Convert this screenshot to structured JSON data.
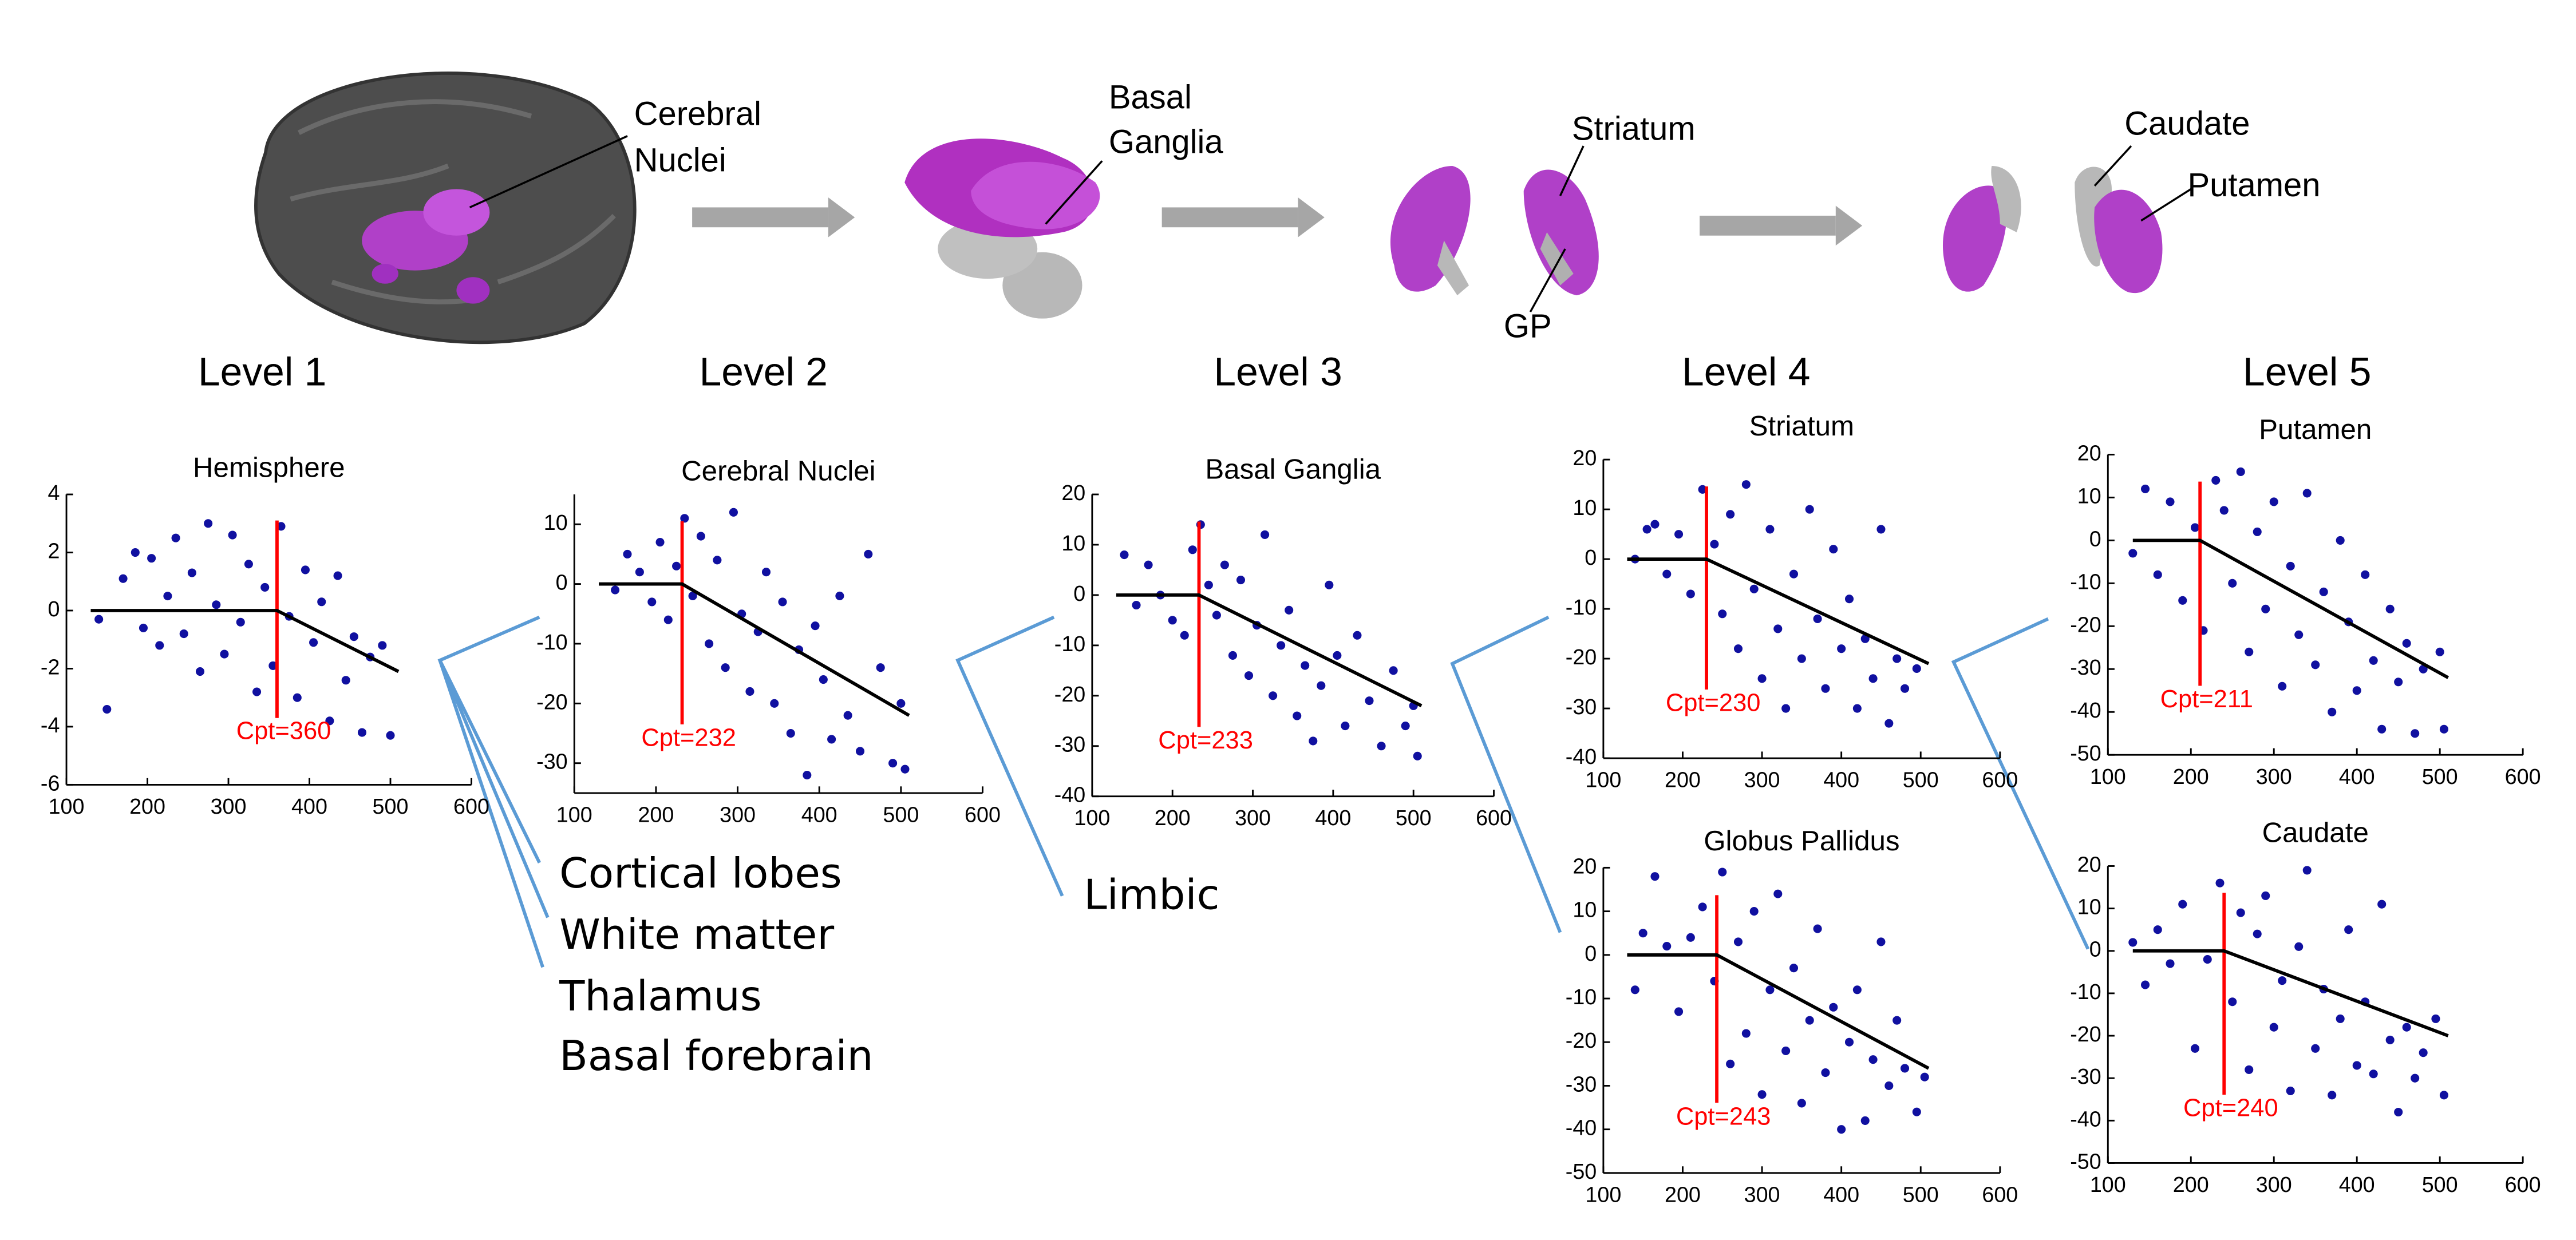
{
  "levels": [
    "Level 1",
    "Level 2",
    "Level 3",
    "Level 4",
    "Level 5"
  ],
  "anatomy_labels": {
    "cerebral_nuclei": [
      "Cerebral",
      "Nuclei"
    ],
    "basal_ganglia": [
      "Basal",
      "Ganglia"
    ],
    "striatum": "Striatum",
    "gp": "GP",
    "caudate": "Caudate",
    "putamen": "Putamen"
  },
  "region_lists": {
    "level1": [
      "Cortical lobes",
      "White matter",
      "Thalamus",
      "Basal forebrain"
    ],
    "level2": [
      "Limbic"
    ]
  },
  "chart_data": [
    {
      "type": "scatter",
      "title": "Hemisphere",
      "color": "#1010a0",
      "x": [
        140,
        150,
        170,
        185,
        195,
        205,
        215,
        225,
        235,
        245,
        255,
        265,
        275,
        285,
        295,
        305,
        315,
        325,
        335,
        345,
        355,
        365,
        375,
        385,
        395,
        405,
        415,
        425,
        435,
        445,
        455,
        465,
        475,
        490,
        500
      ],
      "values": [
        -0.3,
        -3.4,
        1.1,
        2.0,
        -0.6,
        1.8,
        -1.2,
        0.5,
        2.5,
        -0.8,
        1.3,
        -2.1,
        3.0,
        0.2,
        -1.5,
        2.6,
        -0.4,
        1.6,
        -2.8,
        0.8,
        -1.9,
        2.9,
        -0.2,
        -3.0,
        1.4,
        -1.1,
        0.3,
        -3.8,
        1.2,
        -2.4,
        -0.9,
        -4.2,
        -1.6,
        -1.2,
        -4.3
      ],
      "xlim": [
        100,
        600
      ],
      "ylim": [
        -6,
        4
      ],
      "xticks": [
        100,
        200,
        300,
        400,
        500,
        600
      ],
      "yticks": [
        -6,
        -4,
        -2,
        0,
        2,
        4
      ],
      "fit": {
        "x": [
          130,
          360,
          510
        ],
        "y": [
          0,
          0,
          -2.1
        ],
        "color": "#000000"
      },
      "changepoint": 360,
      "changepoint_label": "Cpt=360",
      "changepoint_color": "#ff0000"
    },
    {
      "type": "scatter",
      "title": "Cerebral Nuclei",
      "color": "#1010a0",
      "x": [
        150,
        165,
        180,
        195,
        205,
        215,
        225,
        235,
        245,
        255,
        265,
        275,
        285,
        295,
        305,
        315,
        325,
        335,
        345,
        355,
        365,
        375,
        385,
        395,
        405,
        415,
        425,
        435,
        450,
        460,
        475,
        490,
        500,
        505
      ],
      "values": [
        -1,
        5,
        2,
        -3,
        7,
        -6,
        3,
        11,
        -2,
        8,
        -10,
        4,
        -14,
        12,
        -5,
        -18,
        -8,
        2,
        -20,
        -3,
        -25,
        -11,
        -32,
        -7,
        -16,
        -26,
        -2,
        -22,
        -28,
        5,
        -14,
        -30,
        -20,
        -31
      ],
      "xlim": [
        100,
        600
      ],
      "ylim": [
        -35,
        15
      ],
      "xticks": [
        100,
        200,
        300,
        400,
        500,
        600
      ],
      "yticks": [
        -30,
        -20,
        -10,
        0,
        10
      ],
      "fit": {
        "x": [
          130,
          232,
          510
        ],
        "y": [
          0,
          0,
          -22
        ],
        "color": "#000000"
      },
      "changepoint": 232,
      "changepoint_label": "Cpt=232",
      "changepoint_color": "#ff0000"
    },
    {
      "type": "scatter",
      "title": "Basal Ganglia",
      "color": "#1010a0",
      "x": [
        140,
        155,
        170,
        185,
        200,
        215,
        225,
        235,
        245,
        255,
        265,
        275,
        285,
        295,
        305,
        315,
        325,
        335,
        345,
        355,
        365,
        375,
        385,
        395,
        405,
        415,
        430,
        445,
        460,
        475,
        490,
        500,
        505
      ],
      "values": [
        8,
        -2,
        6,
        0,
        -5,
        -8,
        9,
        14,
        2,
        -4,
        6,
        -12,
        3,
        -16,
        -6,
        12,
        -20,
        -10,
        -3,
        -24,
        -14,
        -29,
        -18,
        2,
        -12,
        -26,
        -8,
        -21,
        -30,
        -15,
        -26,
        -22,
        -32
      ],
      "xlim": [
        100,
        600
      ],
      "ylim": [
        -40,
        20
      ],
      "xticks": [
        100,
        200,
        300,
        400,
        500,
        600
      ],
      "yticks": [
        -40,
        -30,
        -20,
        -10,
        0,
        10,
        20
      ],
      "fit": {
        "x": [
          130,
          233,
          510
        ],
        "y": [
          0,
          0,
          -22
        ],
        "color": "#000000"
      },
      "changepoint": 233,
      "changepoint_label": "Cpt=233",
      "changepoint_color": "#ff0000"
    },
    {
      "type": "scatter",
      "title": "Striatum",
      "color": "#1010a0",
      "x": [
        140,
        155,
        165,
        180,
        195,
        210,
        225,
        240,
        250,
        260,
        270,
        280,
        290,
        300,
        310,
        320,
        330,
        340,
        350,
        360,
        370,
        380,
        390,
        400,
        410,
        420,
        430,
        440,
        450,
        460,
        470,
        480,
        495
      ],
      "values": [
        0,
        6,
        7,
        -3,
        5,
        -7,
        14,
        3,
        -11,
        9,
        -18,
        15,
        -6,
        -24,
        6,
        -14,
        -30,
        -3,
        -20,
        10,
        -12,
        -26,
        2,
        -18,
        -8,
        -30,
        -16,
        -24,
        6,
        -33,
        -20,
        -26,
        -22
      ],
      "xlim": [
        100,
        600
      ],
      "ylim": [
        -40,
        20
      ],
      "xticks": [
        100,
        200,
        300,
        400,
        500,
        600
      ],
      "yticks": [
        -40,
        -30,
        -20,
        -10,
        0,
        10,
        20
      ],
      "fit": {
        "x": [
          130,
          230,
          510
        ],
        "y": [
          0,
          0,
          -21
        ],
        "color": "#000000"
      },
      "changepoint": 230,
      "changepoint_label": "Cpt=230",
      "changepoint_color": "#ff0000"
    },
    {
      "type": "scatter",
      "title": "Globus Pallidus",
      "color": "#1010a0",
      "x": [
        140,
        150,
        165,
        180,
        195,
        210,
        225,
        240,
        250,
        260,
        270,
        280,
        290,
        300,
        310,
        320,
        330,
        340,
        350,
        360,
        370,
        380,
        390,
        400,
        410,
        420,
        430,
        440,
        450,
        460,
        470,
        480,
        495,
        505
      ],
      "values": [
        -8,
        5,
        18,
        2,
        -13,
        4,
        11,
        -6,
        19,
        -25,
        3,
        -18,
        10,
        -32,
        -8,
        14,
        -22,
        -3,
        -34,
        -15,
        6,
        -27,
        -12,
        -40,
        -20,
        -8,
        -38,
        -24,
        3,
        -30,
        -15,
        -26,
        -36,
        -28
      ],
      "xlim": [
        100,
        600
      ],
      "ylim": [
        -50,
        20
      ],
      "xticks": [
        100,
        200,
        300,
        400,
        500,
        600
      ],
      "yticks": [
        -50,
        -40,
        -30,
        -20,
        -10,
        0,
        10,
        20
      ],
      "fit": {
        "x": [
          130,
          243,
          510
        ],
        "y": [
          0,
          0,
          -26
        ],
        "color": "#000000"
      },
      "changepoint": 243,
      "changepoint_label": "Cpt=243",
      "changepoint_color": "#ff0000"
    },
    {
      "type": "scatter",
      "title": "Putamen",
      "color": "#1010a0",
      "x": [
        130,
        145,
        160,
        175,
        190,
        205,
        215,
        230,
        240,
        250,
        260,
        270,
        280,
        290,
        300,
        310,
        320,
        330,
        340,
        350,
        360,
        370,
        380,
        390,
        400,
        410,
        420,
        430,
        440,
        450,
        460,
        470,
        480,
        500,
        505
      ],
      "values": [
        -3,
        12,
        -8,
        9,
        -14,
        3,
        -21,
        14,
        7,
        -10,
        16,
        -26,
        2,
        -16,
        9,
        -34,
        -6,
        -22,
        11,
        -29,
        -12,
        -40,
        0,
        -19,
        -35,
        -8,
        -28,
        -44,
        -16,
        -33,
        -24,
        -45,
        -30,
        -26,
        -44
      ],
      "xlim": [
        100,
        600
      ],
      "ylim": [
        -50,
        20
      ],
      "xticks": [
        100,
        200,
        300,
        400,
        500,
        600
      ],
      "yticks": [
        -50,
        -40,
        -30,
        -20,
        -10,
        0,
        10,
        20
      ],
      "fit": {
        "x": [
          130,
          211,
          510
        ],
        "y": [
          0,
          0,
          -32
        ],
        "color": "#000000"
      },
      "changepoint": 211,
      "changepoint_label": "Cpt=211",
      "changepoint_color": "#ff0000"
    },
    {
      "type": "scatter",
      "title": "Caudate",
      "color": "#1010a0",
      "x": [
        130,
        145,
        160,
        175,
        190,
        205,
        220,
        235,
        250,
        260,
        270,
        280,
        290,
        300,
        310,
        320,
        330,
        340,
        350,
        360,
        370,
        380,
        390,
        400,
        410,
        420,
        430,
        440,
        450,
        460,
        470,
        480,
        495,
        505
      ],
      "values": [
        2,
        -8,
        5,
        -3,
        11,
        -23,
        -2,
        16,
        -12,
        9,
        -28,
        4,
        13,
        -18,
        -7,
        -33,
        1,
        19,
        -23,
        -9,
        -34,
        -16,
        5,
        -27,
        -12,
        -29,
        11,
        -21,
        -38,
        -18,
        -30,
        -24,
        -16,
        -34
      ],
      "xlim": [
        100,
        600
      ],
      "ylim": [
        -50,
        20
      ],
      "xticks": [
        100,
        200,
        300,
        400,
        500,
        600
      ],
      "yticks": [
        -50,
        -40,
        -30,
        -20,
        -10,
        0,
        10,
        20
      ],
      "fit": {
        "x": [
          130,
          240,
          510
        ],
        "y": [
          0,
          0,
          -20
        ],
        "color": "#000000"
      },
      "changepoint": 240,
      "changepoint_label": "Cpt=240",
      "changepoint_color": "#ff0000"
    }
  ]
}
